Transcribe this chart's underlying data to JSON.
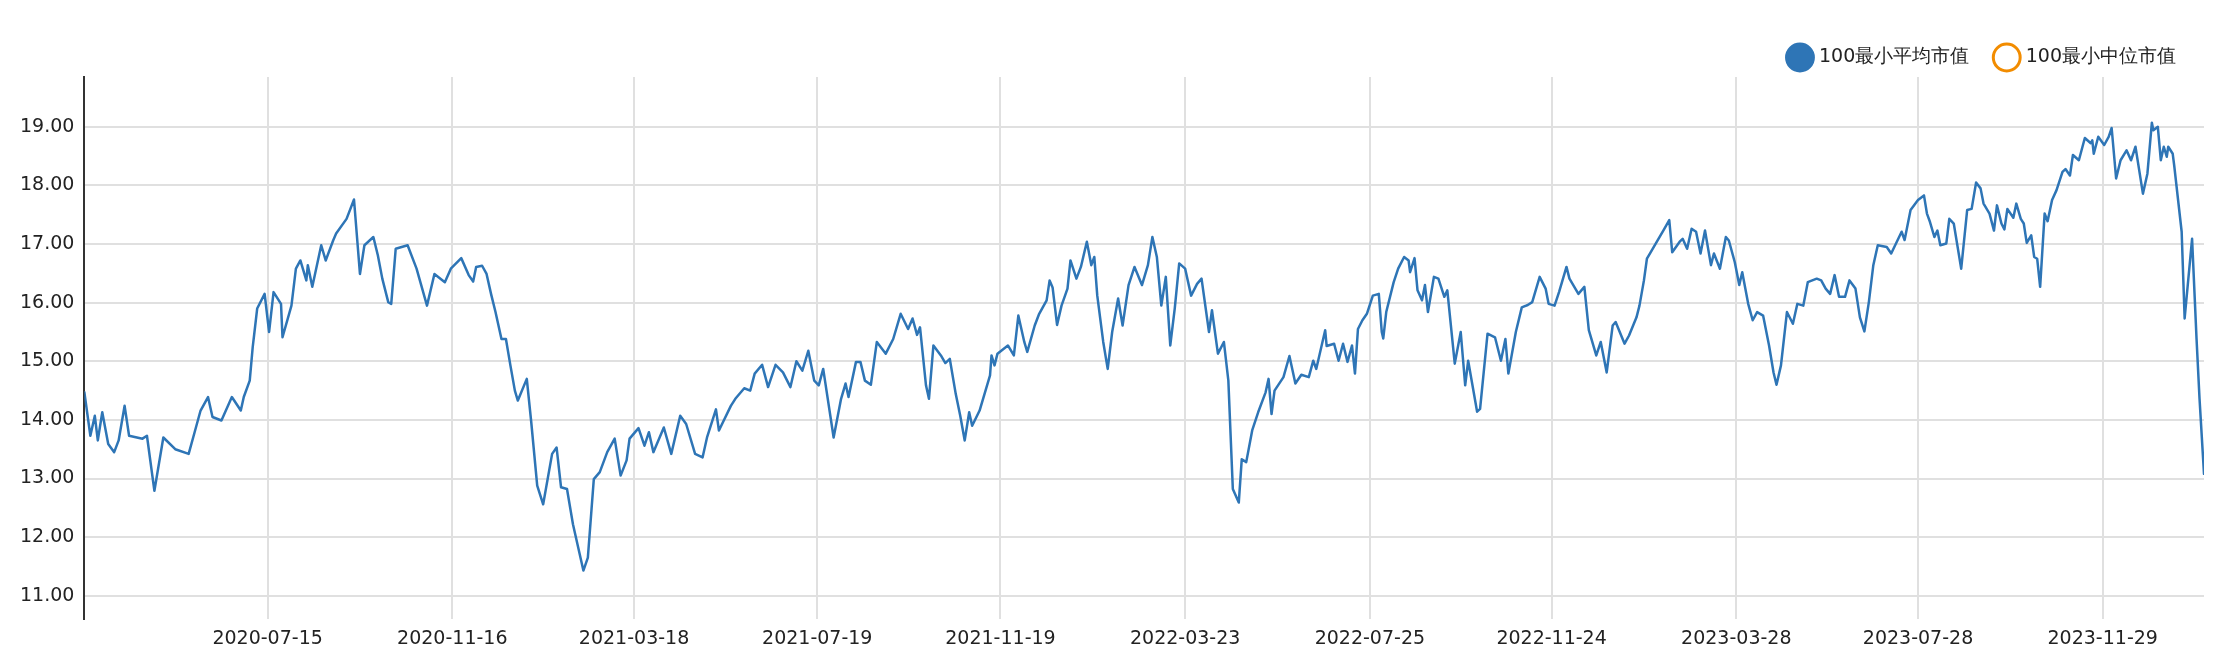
{
  "chart_data": {
    "type": "line",
    "x": [
      "2020-03-14",
      "2020-03-18",
      "2020-03-21",
      "2020-03-23",
      "2020-03-26",
      "2020-03-30",
      "2020-04-03",
      "2020-04-06",
      "2020-04-10",
      "2020-04-13",
      "2020-04-22",
      "2020-04-25",
      "2020-04-30",
      "2020-05-06",
      "2020-05-14",
      "2020-05-23",
      "2020-05-27",
      "2020-05-31",
      "2020-06-05",
      "2020-06-08",
      "2020-06-14",
      "2020-06-21",
      "2020-06-27",
      "2020-06-29",
      "2020-07-03",
      "2020-07-05",
      "2020-07-08",
      "2020-07-13",
      "2020-07-16",
      "2020-07-19",
      "2020-07-24",
      "2020-07-25",
      "2020-07-31",
      "2020-08-03",
      "2020-08-06",
      "2020-08-10",
      "2020-08-11",
      "2020-08-14",
      "2020-08-20",
      "2020-08-23",
      "2020-08-28",
      "2020-08-30",
      "2020-09-06",
      "2020-09-11",
      "2020-09-15",
      "2020-09-18",
      "2020-09-24",
      "2020-09-27",
      "2020-09-30",
      "2020-10-04",
      "2020-10-06",
      "2020-10-09",
      "2020-10-17",
      "2020-10-23",
      "2020-10-30",
      "2020-11-04",
      "2020-11-11",
      "2020-11-15",
      "2020-11-22",
      "2020-11-27",
      "2020-11-30",
      "2020-12-02",
      "2020-12-06",
      "2020-12-09",
      "2020-12-12",
      "2020-12-15",
      "2020-12-19",
      "2020-12-22",
      "2020-12-25",
      "2020-12-28",
      "2020-12-30",
      "2021-01-05",
      "2021-01-08",
      "2021-01-12",
      "2021-01-16",
      "2021-01-22",
      "2021-01-25",
      "2021-01-28",
      "2021-02-01",
      "2021-02-05",
      "2021-02-12",
      "2021-02-15",
      "2021-02-19",
      "2021-02-23",
      "2021-02-28",
      "2021-03-05",
      "2021-03-09",
      "2021-03-13",
      "2021-03-15",
      "2021-03-21",
      "2021-03-25",
      "2021-03-28",
      "2021-03-31",
      "2021-04-07",
      "2021-04-12",
      "2021-04-18",
      "2021-04-22",
      "2021-04-28",
      "2021-05-03",
      "2021-05-06",
      "2021-05-12",
      "2021-05-14",
      "2021-05-22",
      "2021-05-25",
      "2021-05-31",
      "2021-06-04",
      "2021-06-07",
      "2021-06-12",
      "2021-06-16",
      "2021-06-21",
      "2021-06-26",
      "2021-07-01",
      "2021-07-05",
      "2021-07-09",
      "2021-07-13",
      "2021-07-17",
      "2021-07-20",
      "2021-07-23",
      "2021-07-30",
      "2021-08-04",
      "2021-08-07",
      "2021-08-09",
      "2021-08-14",
      "2021-08-17",
      "2021-08-20",
      "2021-08-24",
      "2021-08-28",
      "2021-09-03",
      "2021-09-08",
      "2021-09-13",
      "2021-09-18",
      "2021-09-21",
      "2021-09-24",
      "2021-09-26",
      "2021-09-30",
      "2021-10-02",
      "2021-10-05",
      "2021-10-10",
      "2021-10-13",
      "2021-10-16",
      "2021-10-20",
      "2021-10-23",
      "2021-10-26",
      "2021-10-29",
      "2021-10-31",
      "2021-11-05",
      "2021-11-12",
      "2021-11-13",
      "2021-11-15",
      "2021-11-17",
      "2021-11-24",
      "2021-11-28",
      "2021-12-01",
      "2021-12-05",
      "2021-12-07",
      "2021-12-12",
      "2021-12-15",
      "2021-12-20",
      "2021-12-22",
      "2021-12-24",
      "2021-12-27",
      "2021-12-30",
      "2022-01-03",
      "2022-01-05",
      "2022-01-09",
      "2022-01-12",
      "2022-01-16",
      "2022-01-19",
      "2022-01-21",
      "2022-01-23",
      "2022-01-27",
      "2022-01-30",
      "2022-02-02",
      "2022-02-06",
      "2022-02-09",
      "2022-02-13",
      "2022-02-17",
      "2022-02-22",
      "2022-02-26",
      "2022-03-01",
      "2022-03-04",
      "2022-03-07",
      "2022-03-10",
      "2022-03-13",
      "2022-03-16",
      "2022-03-19",
      "2022-03-23",
      "2022-03-27",
      "2022-03-31",
      "2022-04-03",
      "2022-04-08",
      "2022-04-10",
      "2022-04-14",
      "2022-04-18",
      "2022-04-21",
      "2022-04-24",
      "2022-04-28",
      "2022-04-30",
      "2022-05-03",
      "2022-05-07",
      "2022-05-11",
      "2022-05-16",
      "2022-05-18",
      "2022-05-20",
      "2022-05-22",
      "2022-05-28",
      "2022-06-01",
      "2022-06-05",
      "2022-06-09",
      "2022-06-14",
      "2022-06-17",
      "2022-06-19",
      "2022-06-25",
      "2022-06-26",
      "2022-07-01",
      "2022-07-04",
      "2022-07-07",
      "2022-07-10",
      "2022-07-13",
      "2022-07-15",
      "2022-07-17",
      "2022-07-20",
      "2022-07-23",
      "2022-07-27",
      "2022-07-31",
      "2022-08-02",
      "2022-08-03",
      "2022-08-05",
      "2022-08-10",
      "2022-08-13",
      "2022-08-17",
      "2022-08-20",
      "2022-08-21",
      "2022-08-24",
      "2022-08-26",
      "2022-08-29",
      "2022-08-31",
      "2022-09-02",
      "2022-09-06",
      "2022-09-09",
      "2022-09-13",
      "2022-09-15",
      "2022-09-20",
      "2022-09-24",
      "2022-09-27",
      "2022-09-29",
      "2022-10-05",
      "2022-10-07",
      "2022-10-12",
      "2022-10-17",
      "2022-10-21",
      "2022-10-24",
      "2022-10-26",
      "2022-10-31",
      "2022-11-04",
      "2022-11-08",
      "2022-11-11",
      "2022-11-16",
      "2022-11-20",
      "2022-11-22",
      "2022-11-26",
      "2022-11-29",
      "2022-12-04",
      "2022-12-06",
      "2022-12-12",
      "2022-12-16",
      "2022-12-19",
      "2022-12-24",
      "2022-12-27",
      "2022-12-31",
      "2023-01-04",
      "2023-01-06",
      "2023-01-12",
      "2023-01-15",
      "2023-01-20",
      "2023-01-22",
      "2023-01-25",
      "2023-01-27",
      "2023-02-02",
      "2023-02-07",
      "2023-02-11",
      "2023-02-13",
      "2023-02-18",
      "2023-02-20",
      "2023-02-23",
      "2023-02-26",
      "2023-03-01",
      "2023-03-04",
      "2023-03-07",
      "2023-03-11",
      "2023-03-13",
      "2023-03-17",
      "2023-03-21",
      "2023-03-23",
      "2023-03-27",
      "2023-03-30",
      "2023-04-01",
      "2023-04-05",
      "2023-04-08",
      "2023-04-11",
      "2023-04-15",
      "2023-04-19",
      "2023-04-22",
      "2023-04-24",
      "2023-04-27",
      "2023-05-01",
      "2023-05-05",
      "2023-05-08",
      "2023-05-12",
      "2023-05-15",
      "2023-05-21",
      "2023-05-24",
      "2023-05-27",
      "2023-05-30",
      "2023-06-02",
      "2023-06-05",
      "2023-06-09",
      "2023-06-12",
      "2023-06-16",
      "2023-06-19",
      "2023-06-22",
      "2023-06-25",
      "2023-06-28",
      "2023-07-01",
      "2023-07-07",
      "2023-07-10",
      "2023-07-17",
      "2023-07-19",
      "2023-07-23",
      "2023-07-28",
      "2023-08-01",
      "2023-08-03",
      "2023-08-05",
      "2023-08-08",
      "2023-08-10",
      "2023-08-12",
      "2023-08-16",
      "2023-08-18",
      "2023-08-21",
      "2023-08-26",
      "2023-08-30",
      "2023-09-02",
      "2023-09-05",
      "2023-09-08",
      "2023-09-10",
      "2023-09-14",
      "2023-09-17",
      "2023-09-19",
      "2023-09-22",
      "2023-09-24",
      "2023-09-26",
      "2023-09-30",
      "2023-10-02",
      "2023-10-05",
      "2023-10-07",
      "2023-10-09",
      "2023-10-12",
      "2023-10-14",
      "2023-10-16",
      "2023-10-18",
      "2023-10-21",
      "2023-10-23",
      "2023-10-26",
      "2023-10-29",
      "2023-11-02",
      "2023-11-04",
      "2023-11-07",
      "2023-11-09",
      "2023-11-13",
      "2023-11-17",
      "2023-11-21",
      "2023-11-22",
      "2023-11-23",
      "2023-11-26",
      "2023-11-30",
      "2023-12-03",
      "2023-12-05",
      "2023-12-08",
      "2023-12-11",
      "2023-12-15",
      "2023-12-18",
      "2023-12-21",
      "2023-12-26",
      "2023-12-29",
      "2024-01-01",
      "2024-01-02",
      "2024-01-05",
      "2024-01-07",
      "2024-01-09",
      "2024-01-11",
      "2024-01-12",
      "2024-01-15",
      "2024-01-16",
      "2024-01-21",
      "2024-01-23",
      "2024-01-28",
      "2024-01-31",
      "2024-02-02",
      "2024-02-05"
    ],
    "series": [
      {
        "name": "100最小平均市值",
        "color": "#2e75b6",
        "values": [
          14.47,
          13.73,
          14.07,
          13.65,
          14.13,
          13.59,
          13.45,
          13.65,
          14.24,
          13.73,
          13.68,
          13.73,
          12.79,
          13.7,
          13.5,
          13.42,
          13.79,
          14.16,
          14.39,
          14.05,
          13.99,
          14.39,
          14.16,
          14.39,
          14.67,
          15.24,
          15.9,
          16.15,
          15.5,
          16.18,
          15.98,
          15.41,
          15.95,
          16.58,
          16.72,
          16.38,
          16.64,
          16.27,
          16.98,
          16.72,
          17.06,
          17.18,
          17.43,
          17.76,
          16.49,
          16.98,
          17.12,
          16.81,
          16.41,
          16.01,
          15.98,
          16.92,
          16.98,
          16.58,
          15.95,
          16.49,
          16.35,
          16.58,
          16.76,
          16.47,
          16.36,
          16.61,
          16.63,
          16.49,
          16.15,
          15.84,
          15.38,
          15.38,
          14.93,
          14.5,
          14.33,
          14.7,
          13.96,
          12.88,
          12.56,
          13.42,
          13.53,
          12.85,
          12.82,
          12.22,
          11.43,
          11.65,
          12.99,
          13.11,
          13.45,
          13.68,
          13.05,
          13.31,
          13.68,
          13.86,
          13.56,
          13.79,
          13.45,
          13.87,
          13.42,
          14.07,
          13.93,
          13.42,
          13.36,
          13.7,
          14.18,
          13.82,
          14.24,
          14.36,
          14.54,
          14.5,
          14.79,
          14.94,
          14.56,
          14.94,
          14.81,
          14.56,
          15.0,
          14.84,
          15.18,
          14.67,
          14.59,
          14.87,
          13.7,
          14.36,
          14.62,
          14.39,
          14.99,
          14.99,
          14.67,
          14.6,
          15.33,
          15.13,
          15.38,
          15.81,
          15.55,
          15.73,
          15.45,
          15.58,
          14.59,
          14.36,
          15.27,
          15.1,
          14.97,
          15.04,
          14.44,
          14.07,
          13.65,
          14.13,
          13.9,
          14.16,
          14.76,
          15.1,
          14.93,
          15.13,
          15.27,
          15.1,
          15.78,
          15.33,
          15.16,
          15.61,
          15.81,
          16.04,
          16.38,
          16.26,
          15.62,
          15.95,
          16.24,
          16.72,
          16.41,
          16.61,
          17.04,
          16.64,
          16.78,
          16.12,
          15.33,
          14.87,
          15.5,
          16.07,
          15.61,
          16.3,
          16.61,
          16.3,
          16.64,
          17.12,
          16.78,
          15.95,
          16.44,
          15.27,
          15.9,
          16.67,
          16.58,
          16.12,
          16.32,
          16.41,
          15.5,
          15.87,
          15.13,
          15.33,
          14.67,
          12.82,
          12.59,
          13.33,
          13.28,
          13.82,
          14.13,
          14.47,
          14.7,
          14.1,
          14.5,
          14.73,
          15.09,
          14.62,
          14.77,
          14.73,
          15.01,
          14.87,
          15.53,
          15.26,
          15.3,
          15.01,
          15.3,
          14.99,
          15.27,
          14.79,
          15.55,
          15.7,
          15.81,
          16.12,
          16.15,
          15.5,
          15.39,
          15.84,
          16.35,
          16.58,
          16.78,
          16.72,
          16.52,
          16.76,
          16.21,
          16.04,
          16.3,
          15.84,
          16.44,
          16.41,
          16.1,
          16.21,
          14.96,
          15.5,
          14.59,
          15.01,
          14.14,
          14.19,
          15.47,
          15.41,
          15.01,
          15.38,
          14.79,
          15.5,
          15.92,
          15.96,
          16.01,
          16.44,
          16.24,
          15.98,
          15.95,
          16.18,
          16.61,
          16.41,
          16.15,
          16.27,
          15.53,
          15.1,
          15.33,
          14.81,
          15.61,
          15.67,
          15.3,
          15.44,
          15.75,
          15.95,
          16.38,
          16.75,
          17.01,
          17.23,
          17.41,
          16.86,
          17.04,
          17.09,
          16.92,
          17.26,
          17.21,
          16.84,
          17.23,
          16.64,
          16.84,
          16.58,
          17.12,
          17.06,
          16.69,
          16.3,
          16.52,
          15.98,
          15.7,
          15.84,
          15.78,
          15.27,
          14.81,
          14.6,
          14.93,
          15.84,
          15.64,
          15.98,
          15.95,
          16.35,
          16.41,
          16.38,
          16.24,
          16.15,
          16.47,
          16.1,
          16.1,
          16.38,
          16.24,
          15.75,
          15.51,
          16.01,
          16.64,
          16.98,
          16.95,
          16.84,
          17.21,
          17.07,
          17.58,
          17.75,
          17.83,
          17.52,
          17.38,
          17.12,
          17.23,
          16.98,
          17.01,
          17.43,
          17.35,
          16.58,
          17.58,
          17.6,
          18.05,
          17.95,
          17.69,
          17.52,
          17.23,
          17.66,
          17.35,
          17.25,
          17.6,
          17.45,
          17.69,
          17.43,
          17.35,
          17.02,
          17.15,
          16.78,
          16.75,
          16.27,
          17.52,
          17.39,
          17.75,
          17.92,
          18.23,
          18.28,
          18.17,
          18.52,
          18.43,
          18.81,
          18.72,
          18.77,
          18.54,
          18.83,
          18.69,
          18.83,
          18.98,
          18.12,
          18.43,
          18.6,
          18.43,
          18.66,
          17.86,
          18.2,
          19.07,
          18.94,
          19.0,
          18.43,
          18.66,
          18.49,
          18.66,
          18.54,
          18.34,
          17.21,
          15.73,
          17.09,
          15.38,
          14.36,
          13.08
        ]
      },
      {
        "name": "100最小中位市值",
        "color": "#f28c00",
        "values": [
          null,
          null,
          null,
          null,
          null,
          null,
          null,
          null,
          null,
          null,
          null,
          null,
          null,
          null,
          null,
          null,
          null,
          null,
          null,
          null,
          null,
          null,
          null,
          null,
          null,
          null,
          null,
          null,
          null,
          null,
          null,
          null,
          null,
          null,
          null,
          null,
          null,
          null,
          null,
          null,
          null,
          null,
          null,
          null,
          null,
          null,
          null,
          null,
          null,
          null,
          null,
          null,
          null,
          null,
          null,
          null,
          null,
          null,
          null,
          null,
          null,
          null,
          null,
          null,
          null,
          null,
          null,
          null,
          null,
          null,
          null,
          null,
          null,
          null,
          null,
          null,
          null,
          null,
          null,
          null,
          null,
          null,
          null,
          null,
          null,
          null,
          null,
          null,
          null,
          null,
          null,
          null,
          null,
          null,
          null,
          null,
          null,
          null,
          null,
          null,
          null,
          null,
          null,
          null,
          null,
          null,
          null,
          null,
          null,
          null,
          null,
          null,
          null,
          null,
          null,
          null,
          null,
          null,
          null,
          null,
          null,
          null,
          null,
          null,
          null,
          null,
          null,
          null,
          null,
          null,
          null,
          null,
          null,
          null,
          null,
          null,
          null,
          null,
          null,
          null,
          null,
          null,
          null,
          null,
          null,
          null,
          null,
          null,
          null,
          null,
          null,
          null,
          null,
          null,
          null,
          null,
          null,
          null,
          null,
          null,
          null,
          null,
          null,
          null,
          null,
          null,
          null,
          null,
          null,
          null,
          null,
          null,
          null,
          null,
          null,
          null,
          null,
          null,
          null,
          null,
          null,
          null,
          null,
          null,
          null,
          null,
          null,
          null,
          null,
          null,
          null,
          null,
          null,
          null,
          null,
          null,
          null,
          null,
          null,
          null,
          null,
          null,
          null,
          null,
          null,
          null,
          null,
          null,
          null,
          null,
          null,
          null,
          null,
          null,
          null,
          null,
          null,
          null,
          null,
          null,
          null,
          null,
          null,
          null,
          null,
          null,
          null,
          null,
          null,
          null,
          null,
          null,
          null,
          null,
          null,
          null,
          null,
          null,
          null,
          null,
          null,
          null,
          null,
          null,
          null,
          null,
          null,
          null,
          null,
          null,
          null,
          null,
          null,
          null,
          null,
          null,
          null,
          null,
          null,
          null,
          null,
          null,
          null,
          null,
          null,
          null,
          null,
          null,
          null,
          null,
          null,
          null,
          null,
          null,
          null,
          null,
          null,
          null,
          null,
          null,
          null,
          null,
          null,
          null,
          null,
          null,
          null,
          null,
          null,
          null,
          null,
          null,
          null,
          null,
          null,
          null,
          null,
          null,
          null,
          null,
          null,
          null,
          null,
          null,
          null,
          null,
          null,
          null,
          null,
          null,
          null,
          null,
          null,
          null,
          null,
          null,
          null,
          null,
          null,
          null,
          null,
          null,
          null,
          null,
          null,
          null,
          null,
          null,
          null,
          null,
          null,
          null,
          null,
          null,
          null,
          null,
          null,
          null,
          null,
          null,
          null,
          null,
          null,
          null,
          null,
          null,
          null,
          null,
          null,
          null,
          null,
          null,
          null,
          null,
          null,
          null,
          null,
          null,
          null,
          null,
          null,
          null,
          null,
          null,
          null,
          null,
          null,
          null,
          null,
          null,
          null,
          null,
          null,
          null,
          null,
          null,
          null,
          null,
          null,
          null,
          null,
          null,
          null,
          null,
          null,
          null,
          null,
          null,
          null,
          null,
          null,
          null,
          null,
          null,
          null,
          null,
          null,
          null,
          null
        ]
      }
    ],
    "xlim": [
      "2020-03-14",
      "2024-02-05"
    ],
    "xticks": [
      "2020-07-15",
      "2020-11-16",
      "2021-03-18",
      "2021-07-19",
      "2021-11-19",
      "2022-03-23",
      "2022-07-25",
      "2022-11-24",
      "2023-03-28",
      "2023-07-28",
      "2023-11-29"
    ],
    "ylim": [
      10.6,
      19.85
    ],
    "yticks": [
      {
        "value": 11,
        "label": "11.00"
      },
      {
        "value": 12,
        "label": "12.00"
      },
      {
        "value": 13,
        "label": "13.00"
      },
      {
        "value": 14,
        "label": "14.00"
      },
      {
        "value": 15,
        "label": "15.00"
      },
      {
        "value": 16,
        "label": "16.00"
      },
      {
        "value": 17,
        "label": "17.00"
      },
      {
        "value": 18,
        "label": "18.00"
      },
      {
        "value": 19,
        "label": "19.00"
      }
    ],
    "grid": true,
    "legend": "top right",
    "marker": "none",
    "line_style": "solid"
  }
}
